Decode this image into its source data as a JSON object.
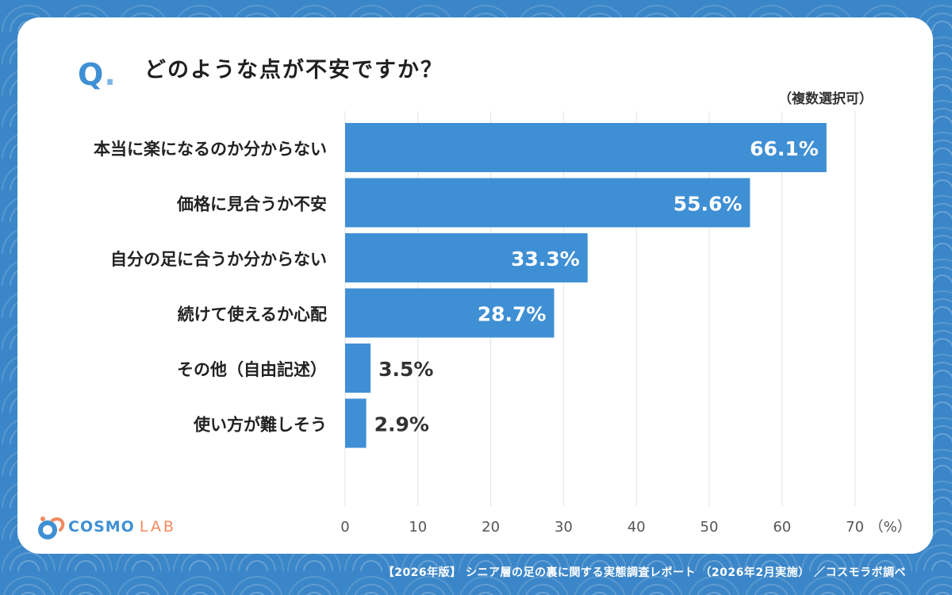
{
  "question": {
    "mark": "Q",
    "text": "どのような点が不安ですか？",
    "note": "（複数選択可）"
  },
  "footer": "【2026年版】 シニア層の足の裏に関する実態調査レポート （2026年2月実施） ／コスモラボ調べ",
  "logo": {
    "text_main": "COSMO",
    "text_sub": "LAB"
  },
  "colors": {
    "bar": "#3f8fd4",
    "background": "#3b86c8",
    "accent_orange": "#f08a5d"
  },
  "chart_data": {
    "type": "bar",
    "orientation": "horizontal",
    "categories": [
      "本当に楽になるのか分からない",
      "価格に見合うか不安",
      "自分の足に合うか分からない",
      "続けて使えるか心配",
      "その他（自由記述）",
      "使い方が難しそう"
    ],
    "values": [
      66.1,
      55.6,
      33.3,
      28.7,
      3.5,
      2.9
    ],
    "value_labels": [
      "66.1%",
      "55.6%",
      "33.3%",
      "28.7%",
      "3.5%",
      "2.9%"
    ],
    "xlim": [
      0,
      70
    ],
    "xticks": [
      "0",
      "10",
      "20",
      "30",
      "40",
      "50",
      "60",
      "70"
    ],
    "xunit": "（%）",
    "grid": true
  }
}
